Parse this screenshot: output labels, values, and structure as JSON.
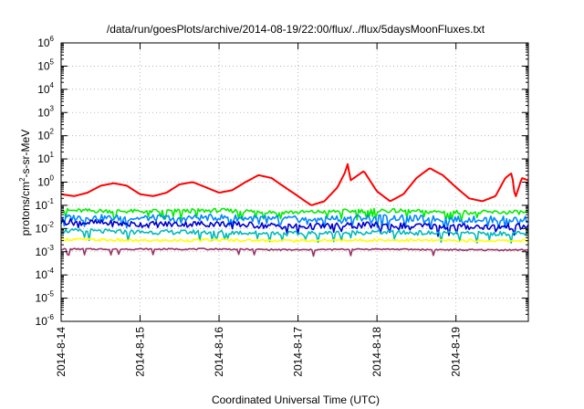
{
  "chart_data": {
    "type": "line",
    "title": "/data/run/goesPlots/archive/2014-08-19/22:00/flux/../flux/5daysMoonFluxes.txt",
    "xlabel": "Coordinated Universal Time (UTC)",
    "ylabel": {
      "prefix": "protons/cm",
      "sup": "2",
      "suffix": "-s-sr-MeV"
    },
    "x_scale": "time",
    "y_scale": "log",
    "grid": true,
    "xlim": [
      "2014-08-14T00:00",
      "2014-08-19T22:00"
    ],
    "ylim": [
      1e-06,
      1000000.0
    ],
    "x_ticks": [
      "2014-8-14",
      "2014-8-15",
      "2014-8-16",
      "2014-8-17",
      "2014-8-18",
      "2014-8-19"
    ],
    "y_ticks": [
      {
        "value": 1e-06,
        "base": "10",
        "exp": "-6"
      },
      {
        "value": 1e-05,
        "base": "10",
        "exp": "-5"
      },
      {
        "value": 0.0001,
        "base": "10",
        "exp": "-4"
      },
      {
        "value": 0.001,
        "base": "10",
        "exp": "-3"
      },
      {
        "value": 0.01,
        "base": "10",
        "exp": "-2"
      },
      {
        "value": 0.1,
        "base": "10",
        "exp": "-1"
      },
      {
        "value": 1.0,
        "base": "10",
        "exp": "0"
      },
      {
        "value": 10.0,
        "base": "10",
        "exp": "1"
      },
      {
        "value": 100.0,
        "base": "10",
        "exp": "2"
      },
      {
        "value": 1000.0,
        "base": "10",
        "exp": "3"
      },
      {
        "value": 10000.0,
        "base": "10",
        "exp": "4"
      },
      {
        "value": 100000.0,
        "base": "10",
        "exp": "5"
      },
      {
        "value": 1000000.0,
        "base": "10",
        "exp": "6"
      }
    ],
    "series": [
      {
        "color": "#ff0000",
        "x": [
          "2014-08-14T00:00",
          "2014-08-14T04:00",
          "2014-08-14T08:00",
          "2014-08-14T12:00",
          "2014-08-14T16:00",
          "2014-08-14T20:00",
          "2014-08-15T00:00",
          "2014-08-15T04:00",
          "2014-08-15T08:00",
          "2014-08-15T12:00",
          "2014-08-15T16:00",
          "2014-08-15T20:00",
          "2014-08-16T00:00",
          "2014-08-16T04:00",
          "2014-08-16T08:00",
          "2014-08-16T12:00",
          "2014-08-16T16:00",
          "2014-08-16T20:00",
          "2014-08-17T00:00",
          "2014-08-17T04:00",
          "2014-08-17T08:00",
          "2014-08-17T12:00",
          "2014-08-17T14:30",
          "2014-08-17T15:00",
          "2014-08-17T16:00",
          "2014-08-17T20:00",
          "2014-08-18T00:00",
          "2014-08-18T04:00",
          "2014-08-18T08:00",
          "2014-08-18T12:00",
          "2014-08-18T16:00",
          "2014-08-18T20:00",
          "2014-08-19T00:00",
          "2014-08-19T04:00",
          "2014-08-19T08:00",
          "2014-08-19T12:00",
          "2014-08-19T15:00",
          "2014-08-19T17:00",
          "2014-08-19T18:00",
          "2014-08-19T20:00",
          "2014-08-19T22:00"
        ],
        "values": [
          0.3,
          0.25,
          0.35,
          0.7,
          0.9,
          0.7,
          0.3,
          0.25,
          0.35,
          0.8,
          1.0,
          0.6,
          0.35,
          0.45,
          1.0,
          2.0,
          1.5,
          0.6,
          0.25,
          0.1,
          0.15,
          0.6,
          3.0,
          7.0,
          1.2,
          3.0,
          0.4,
          0.15,
          0.3,
          1.5,
          4.0,
          2.0,
          0.6,
          0.2,
          0.15,
          0.25,
          1.5,
          2.5,
          0.2,
          1.5,
          1.2
        ]
      },
      {
        "color": "#00ee00",
        "x": [
          "2014-08-14T00:00",
          "2014-08-15T00:00",
          "2014-08-16T00:00",
          "2014-08-17T00:00",
          "2014-08-18T00:00",
          "2014-08-19T00:00",
          "2014-08-19T22:00"
        ],
        "values": [
          0.06,
          0.055,
          0.06,
          0.05,
          0.06,
          0.05,
          0.05
        ]
      },
      {
        "color": "#0088ff",
        "x": [
          "2014-08-14T00:00",
          "2014-08-15T00:00",
          "2014-08-16T00:00",
          "2014-08-17T00:00",
          "2014-08-18T00:00",
          "2014-08-19T00:00",
          "2014-08-19T22:00"
        ],
        "values": [
          0.03,
          0.028,
          0.03,
          0.025,
          0.03,
          0.025,
          0.025
        ]
      },
      {
        "color": "#0000cc",
        "x": [
          "2014-08-14T00:00",
          "2014-08-15T00:00",
          "2014-08-16T00:00",
          "2014-08-17T00:00",
          "2014-08-18T00:00",
          "2014-08-19T00:00",
          "2014-08-19T22:00"
        ],
        "values": [
          0.02,
          0.015,
          0.016,
          0.012,
          0.014,
          0.012,
          0.012
        ]
      },
      {
        "color": "#00bbbb",
        "x": [
          "2014-08-14T00:00",
          "2014-08-15T00:00",
          "2014-08-16T00:00",
          "2014-08-17T00:00",
          "2014-08-18T00:00",
          "2014-08-19T00:00",
          "2014-08-19T22:00"
        ],
        "values": [
          0.008,
          0.007,
          0.007,
          0.006,
          0.007,
          0.006,
          0.006
        ]
      },
      {
        "color": "#ffff00",
        "x": [
          "2014-08-14T00:00",
          "2014-08-15T00:00",
          "2014-08-16T00:00",
          "2014-08-17T00:00",
          "2014-08-18T00:00",
          "2014-08-19T00:00",
          "2014-08-19T22:00"
        ],
        "values": [
          0.0035,
          0.003,
          0.0032,
          0.003,
          0.0032,
          0.003,
          0.003
        ]
      },
      {
        "color": "#993366",
        "x": [
          "2014-08-14T00:00",
          "2014-08-15T00:00",
          "2014-08-16T00:00",
          "2014-08-17T00:00",
          "2014-08-18T00:00",
          "2014-08-19T00:00",
          "2014-08-19T22:00"
        ],
        "values": [
          0.0013,
          0.0013,
          0.0013,
          0.0012,
          0.0013,
          0.0012,
          0.0012
        ]
      }
    ]
  }
}
